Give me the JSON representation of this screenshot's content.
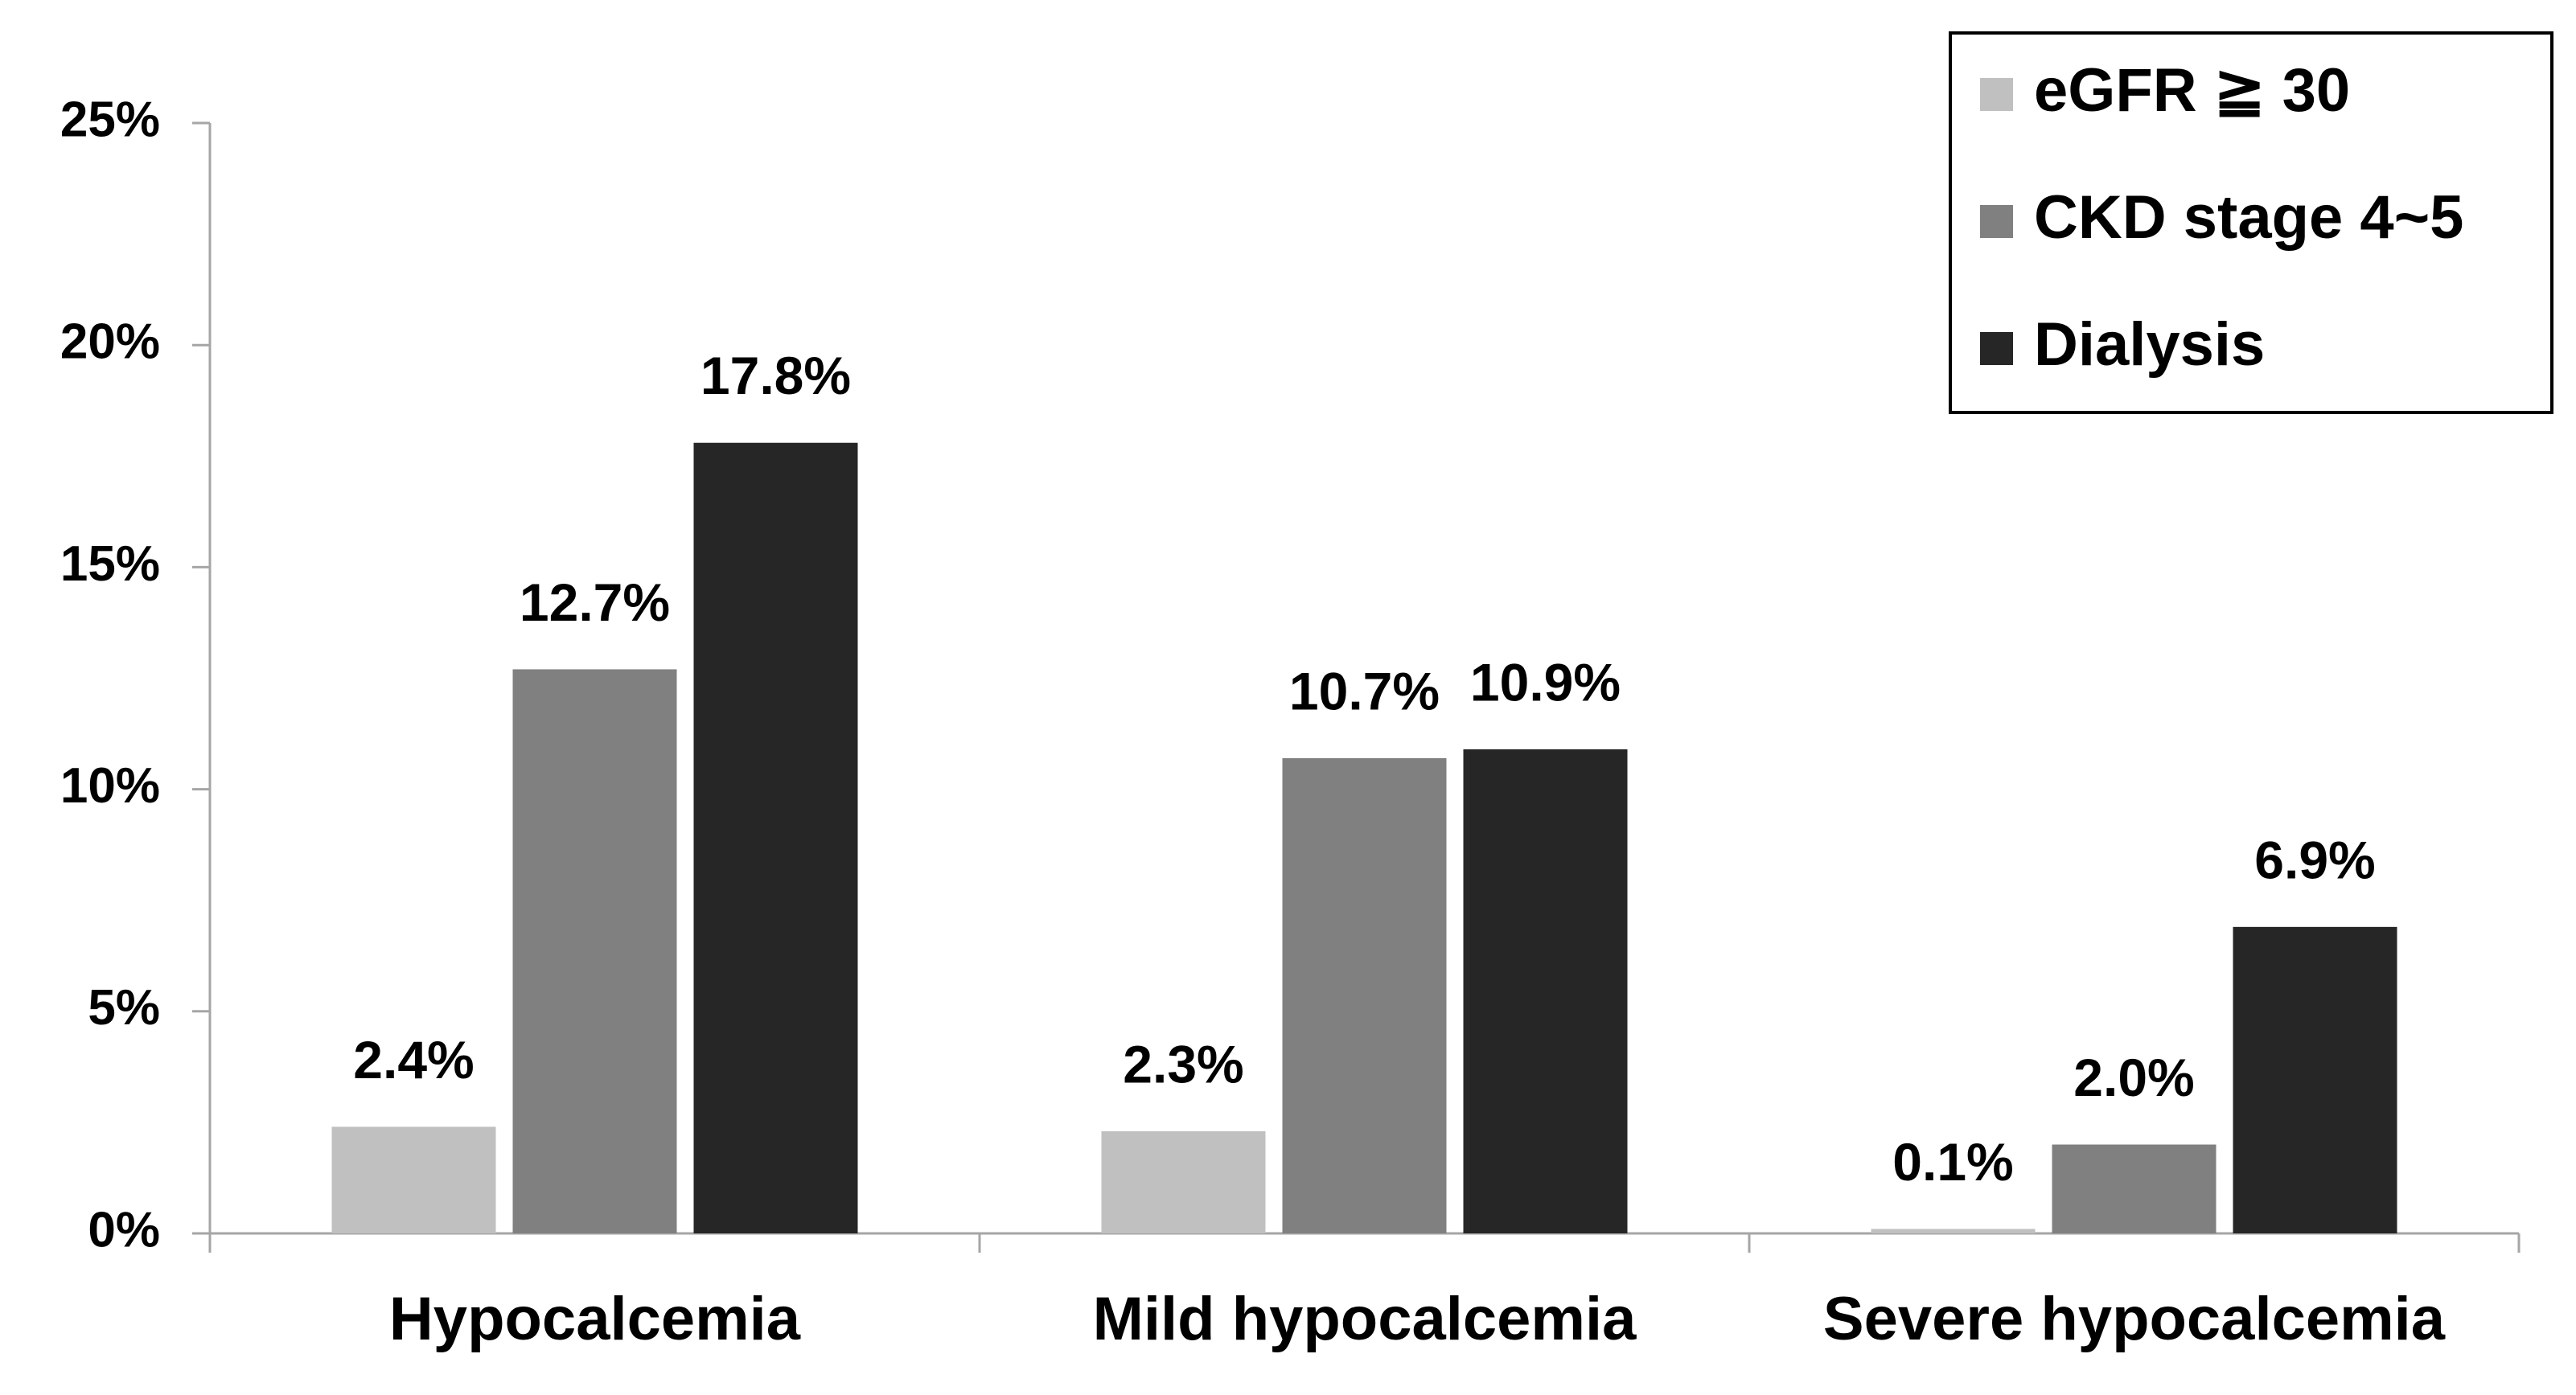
{
  "chart_data": {
    "type": "bar",
    "categories": [
      "Hypocalcemia",
      "Mild hypocalcemia",
      "Severe hypocalcemia"
    ],
    "series": [
      {
        "name": "eGFR ≧ 30",
        "color": "#c0c0c0",
        "values": [
          2.4,
          2.3,
          0.1
        ],
        "value_labels": [
          "2.4%",
          "2.3%",
          "0.1%"
        ]
      },
      {
        "name": "CKD stage 4~5",
        "color": "#808080",
        "values": [
          12.7,
          10.7,
          2.0
        ],
        "value_labels": [
          "12.7%",
          "10.7%",
          "2.0%"
        ]
      },
      {
        "name": "Dialysis",
        "color": "#262626",
        "values": [
          17.8,
          10.9,
          6.9
        ],
        "value_labels": [
          "17.8%",
          "10.9%",
          "6.9%"
        ]
      }
    ],
    "ylim": [
      0,
      25
    ],
    "yticks": [
      {
        "value": 0,
        "label": "0%"
      },
      {
        "value": 5,
        "label": "5%"
      },
      {
        "value": 10,
        "label": "10%"
      },
      {
        "value": 15,
        "label": "15%"
      },
      {
        "value": 20,
        "label": "20%"
      },
      {
        "value": 25,
        "label": "25%"
      }
    ],
    "legend": "top-right"
  }
}
